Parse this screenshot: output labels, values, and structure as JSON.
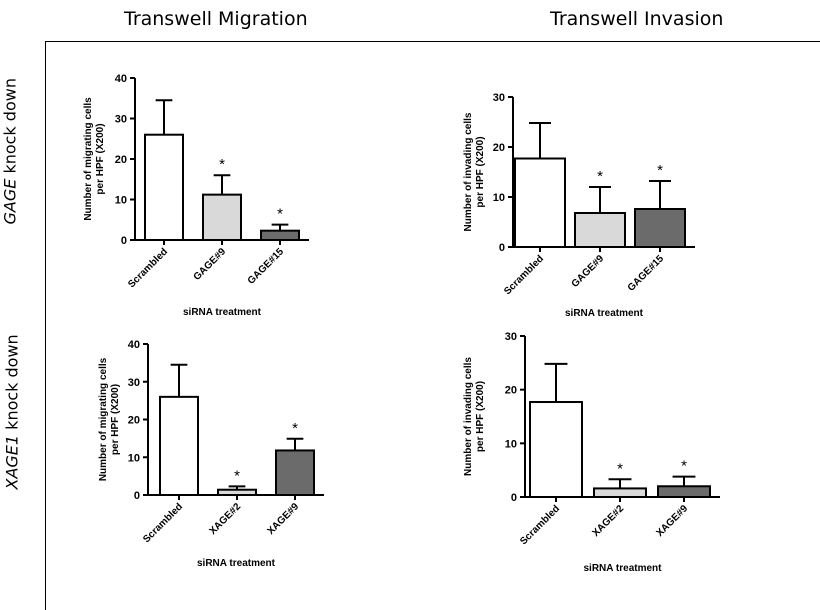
{
  "headers": {
    "col_left": "Transwell Migration",
    "col_right": "Transwell Invasion",
    "row_top_italic": "GAGE",
    "row_top_rest": " knock down",
    "row_bottom_italic": "XAGE1",
    "row_bottom_rest": " knock down"
  },
  "colors": {
    "bar_white": "#ffffff",
    "bar_light": "#d9d9d9",
    "bar_dark": "#6b6b6b",
    "stroke": "#000000"
  },
  "chart_data": [
    {
      "type": "bar",
      "categories": [
        "Scrambled",
        "GAGE#9",
        "GAGE#15"
      ],
      "values": [
        26,
        11.2,
        2.3
      ],
      "errors": [
        8.5,
        4.8,
        1.5
      ],
      "significance": [
        "",
        "*",
        "*"
      ],
      "bar_colors": [
        "#ffffff",
        "#d9d9d9",
        "#6b6b6b"
      ],
      "xlabel": "siRNA treatment",
      "ylabel": [
        "Number of migrating cells",
        "per HPF (X200)"
      ],
      "ylim": [
        0,
        40
      ],
      "yticks": [
        0,
        10,
        20,
        30,
        40
      ]
    },
    {
      "type": "bar",
      "categories": [
        "Scrambled",
        "GAGE#9",
        "GAGE#15"
      ],
      "values": [
        17.7,
        6.8,
        7.6
      ],
      "errors": [
        7.1,
        5.2,
        5.6
      ],
      "significance": [
        "",
        "*",
        "*"
      ],
      "bar_colors": [
        "#ffffff",
        "#d9d9d9",
        "#6b6b6b"
      ],
      "xlabel": "siRNA treatment",
      "ylabel": [
        "Number of invading cells",
        "per HPF (X200)"
      ],
      "ylim": [
        0,
        30
      ],
      "yticks": [
        0,
        10,
        20,
        30
      ]
    },
    {
      "type": "bar",
      "categories": [
        "Scrambled",
        "XAGE#2",
        "XAGE#9"
      ],
      "values": [
        26,
        1.4,
        11.8
      ],
      "errors": [
        8.5,
        0.9,
        3.1
      ],
      "significance": [
        "",
        "*",
        "*"
      ],
      "bar_colors": [
        "#ffffff",
        "#d9d9d9",
        "#6b6b6b"
      ],
      "xlabel": "siRNA treatment",
      "ylabel": [
        "Number of migrating cells",
        "per HPF (X200)"
      ],
      "ylim": [
        0,
        40
      ],
      "yticks": [
        0,
        10,
        20,
        30,
        40
      ]
    },
    {
      "type": "bar",
      "categories": [
        "Scrambled",
        "XAGE#2",
        "XAGE#9"
      ],
      "values": [
        17.7,
        1.6,
        2.0
      ],
      "errors": [
        7.1,
        1.7,
        1.8
      ],
      "significance": [
        "",
        "*",
        "*"
      ],
      "bar_colors": [
        "#ffffff",
        "#d9d9d9",
        "#6b6b6b"
      ],
      "xlabel": "siRNA treatment",
      "ylabel": [
        "Number of invading cells",
        "per HPF (X200)"
      ],
      "ylim": [
        0,
        30
      ],
      "yticks": [
        0,
        10,
        20,
        30
      ]
    }
  ]
}
